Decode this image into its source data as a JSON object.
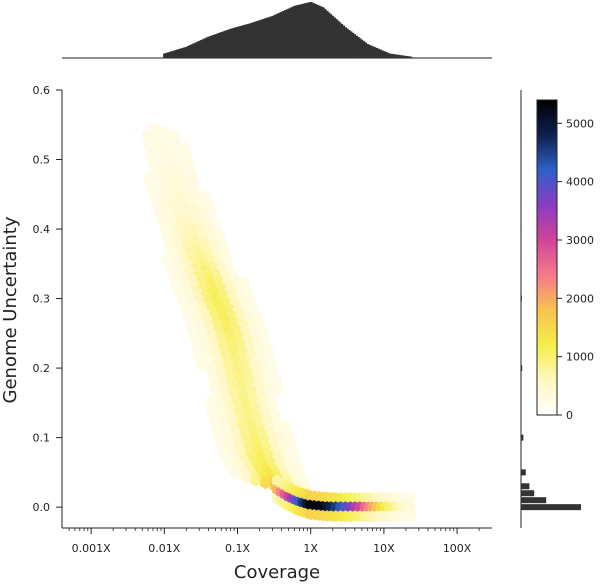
{
  "chart_data": [
    {
      "type": "heatmap",
      "subtype": "hexbin",
      "xlabel": "Coverage",
      "ylabel": "Genome Uncertainty",
      "xscale": "log",
      "xlim": [
        0.0004,
        300
      ],
      "ylim": [
        -0.03,
        0.6
      ],
      "x_ticks": [
        0.001,
        0.01,
        0.1,
        1,
        10,
        100
      ],
      "x_tick_labels": [
        "0.001X",
        "0.01X",
        "0.1X",
        "1X",
        "10X",
        "100X"
      ],
      "y_ticks": [
        0.0,
        0.1,
        0.2,
        0.3,
        0.4,
        0.5,
        0.6
      ],
      "y_tick_labels": [
        "0.0",
        "0.1",
        "0.2",
        "0.3",
        "0.4",
        "0.5",
        "0.6"
      ],
      "grid": false,
      "colorscale": [
        "#ffffff",
        "#fff7c0",
        "#f6ee4a",
        "#f8c24e",
        "#f7798a",
        "#d0449b",
        "#8a3cc4",
        "#2e61c8",
        "#0d2050",
        "#000000"
      ],
      "ridge": [
        {
          "x": 0.01,
          "y": 0.54,
          "count": 20
        },
        {
          "x": 0.012,
          "y": 0.5,
          "count": 40
        },
        {
          "x": 0.015,
          "y": 0.46,
          "count": 80
        },
        {
          "x": 0.02,
          "y": 0.42,
          "count": 160
        },
        {
          "x": 0.025,
          "y": 0.39,
          "count": 260
        },
        {
          "x": 0.03,
          "y": 0.36,
          "count": 380
        },
        {
          "x": 0.04,
          "y": 0.33,
          "count": 520
        },
        {
          "x": 0.05,
          "y": 0.3,
          "count": 620
        },
        {
          "x": 0.065,
          "y": 0.27,
          "count": 600
        },
        {
          "x": 0.08,
          "y": 0.24,
          "count": 520
        },
        {
          "x": 0.1,
          "y": 0.2,
          "count": 450
        },
        {
          "x": 0.12,
          "y": 0.16,
          "count": 420
        },
        {
          "x": 0.15,
          "y": 0.12,
          "count": 450
        },
        {
          "x": 0.18,
          "y": 0.09,
          "count": 520
        },
        {
          "x": 0.22,
          "y": 0.06,
          "count": 650
        },
        {
          "x": 0.28,
          "y": 0.04,
          "count": 800
        },
        {
          "x": 0.35,
          "y": 0.025,
          "count": 1300
        },
        {
          "x": 0.5,
          "y": 0.015,
          "count": 2500
        },
        {
          "x": 0.7,
          "y": 0.008,
          "count": 3800
        },
        {
          "x": 1.0,
          "y": 0.003,
          "count": 5200
        },
        {
          "x": 1.5,
          "y": 0.001,
          "count": 5000
        },
        {
          "x": 2.2,
          "y": 0.0,
          "count": 4200
        },
        {
          "x": 3.5,
          "y": 0.0,
          "count": 3200
        },
        {
          "x": 5.5,
          "y": 0.0,
          "count": 2000
        },
        {
          "x": 8.0,
          "y": 0.0,
          "count": 1100
        },
        {
          "x": 12.0,
          "y": 0.0,
          "count": 500
        },
        {
          "x": 18.0,
          "y": 0.0,
          "count": 150
        },
        {
          "x": 26.0,
          "y": 0.0,
          "count": 40
        }
      ]
    },
    {
      "type": "bar",
      "role": "marginal-histogram-x",
      "xscale": "log",
      "x": [
        0.01,
        0.02,
        0.04,
        0.08,
        0.15,
        0.3,
        0.6,
        1.0,
        1.5,
        3.0,
        6.0,
        12.0,
        25.0
      ],
      "values": [
        0.08,
        0.2,
        0.38,
        0.52,
        0.62,
        0.75,
        0.93,
        1.0,
        0.9,
        0.55,
        0.25,
        0.08,
        0.02
      ]
    },
    {
      "type": "bar",
      "role": "marginal-histogram-y",
      "y": [
        0.0,
        0.01,
        0.02,
        0.03,
        0.05,
        0.1,
        0.2,
        0.3,
        0.4
      ],
      "values": [
        1.0,
        0.42,
        0.22,
        0.14,
        0.08,
        0.04,
        0.02,
        0.015,
        0.01
      ]
    },
    {
      "type": "colorbar",
      "range": [
        0,
        5400
      ],
      "ticks": [
        0,
        1000,
        2000,
        3000,
        4000,
        5000
      ],
      "tick_labels": [
        "0",
        "1000",
        "2000",
        "3000",
        "4000",
        "5000"
      ]
    }
  ]
}
